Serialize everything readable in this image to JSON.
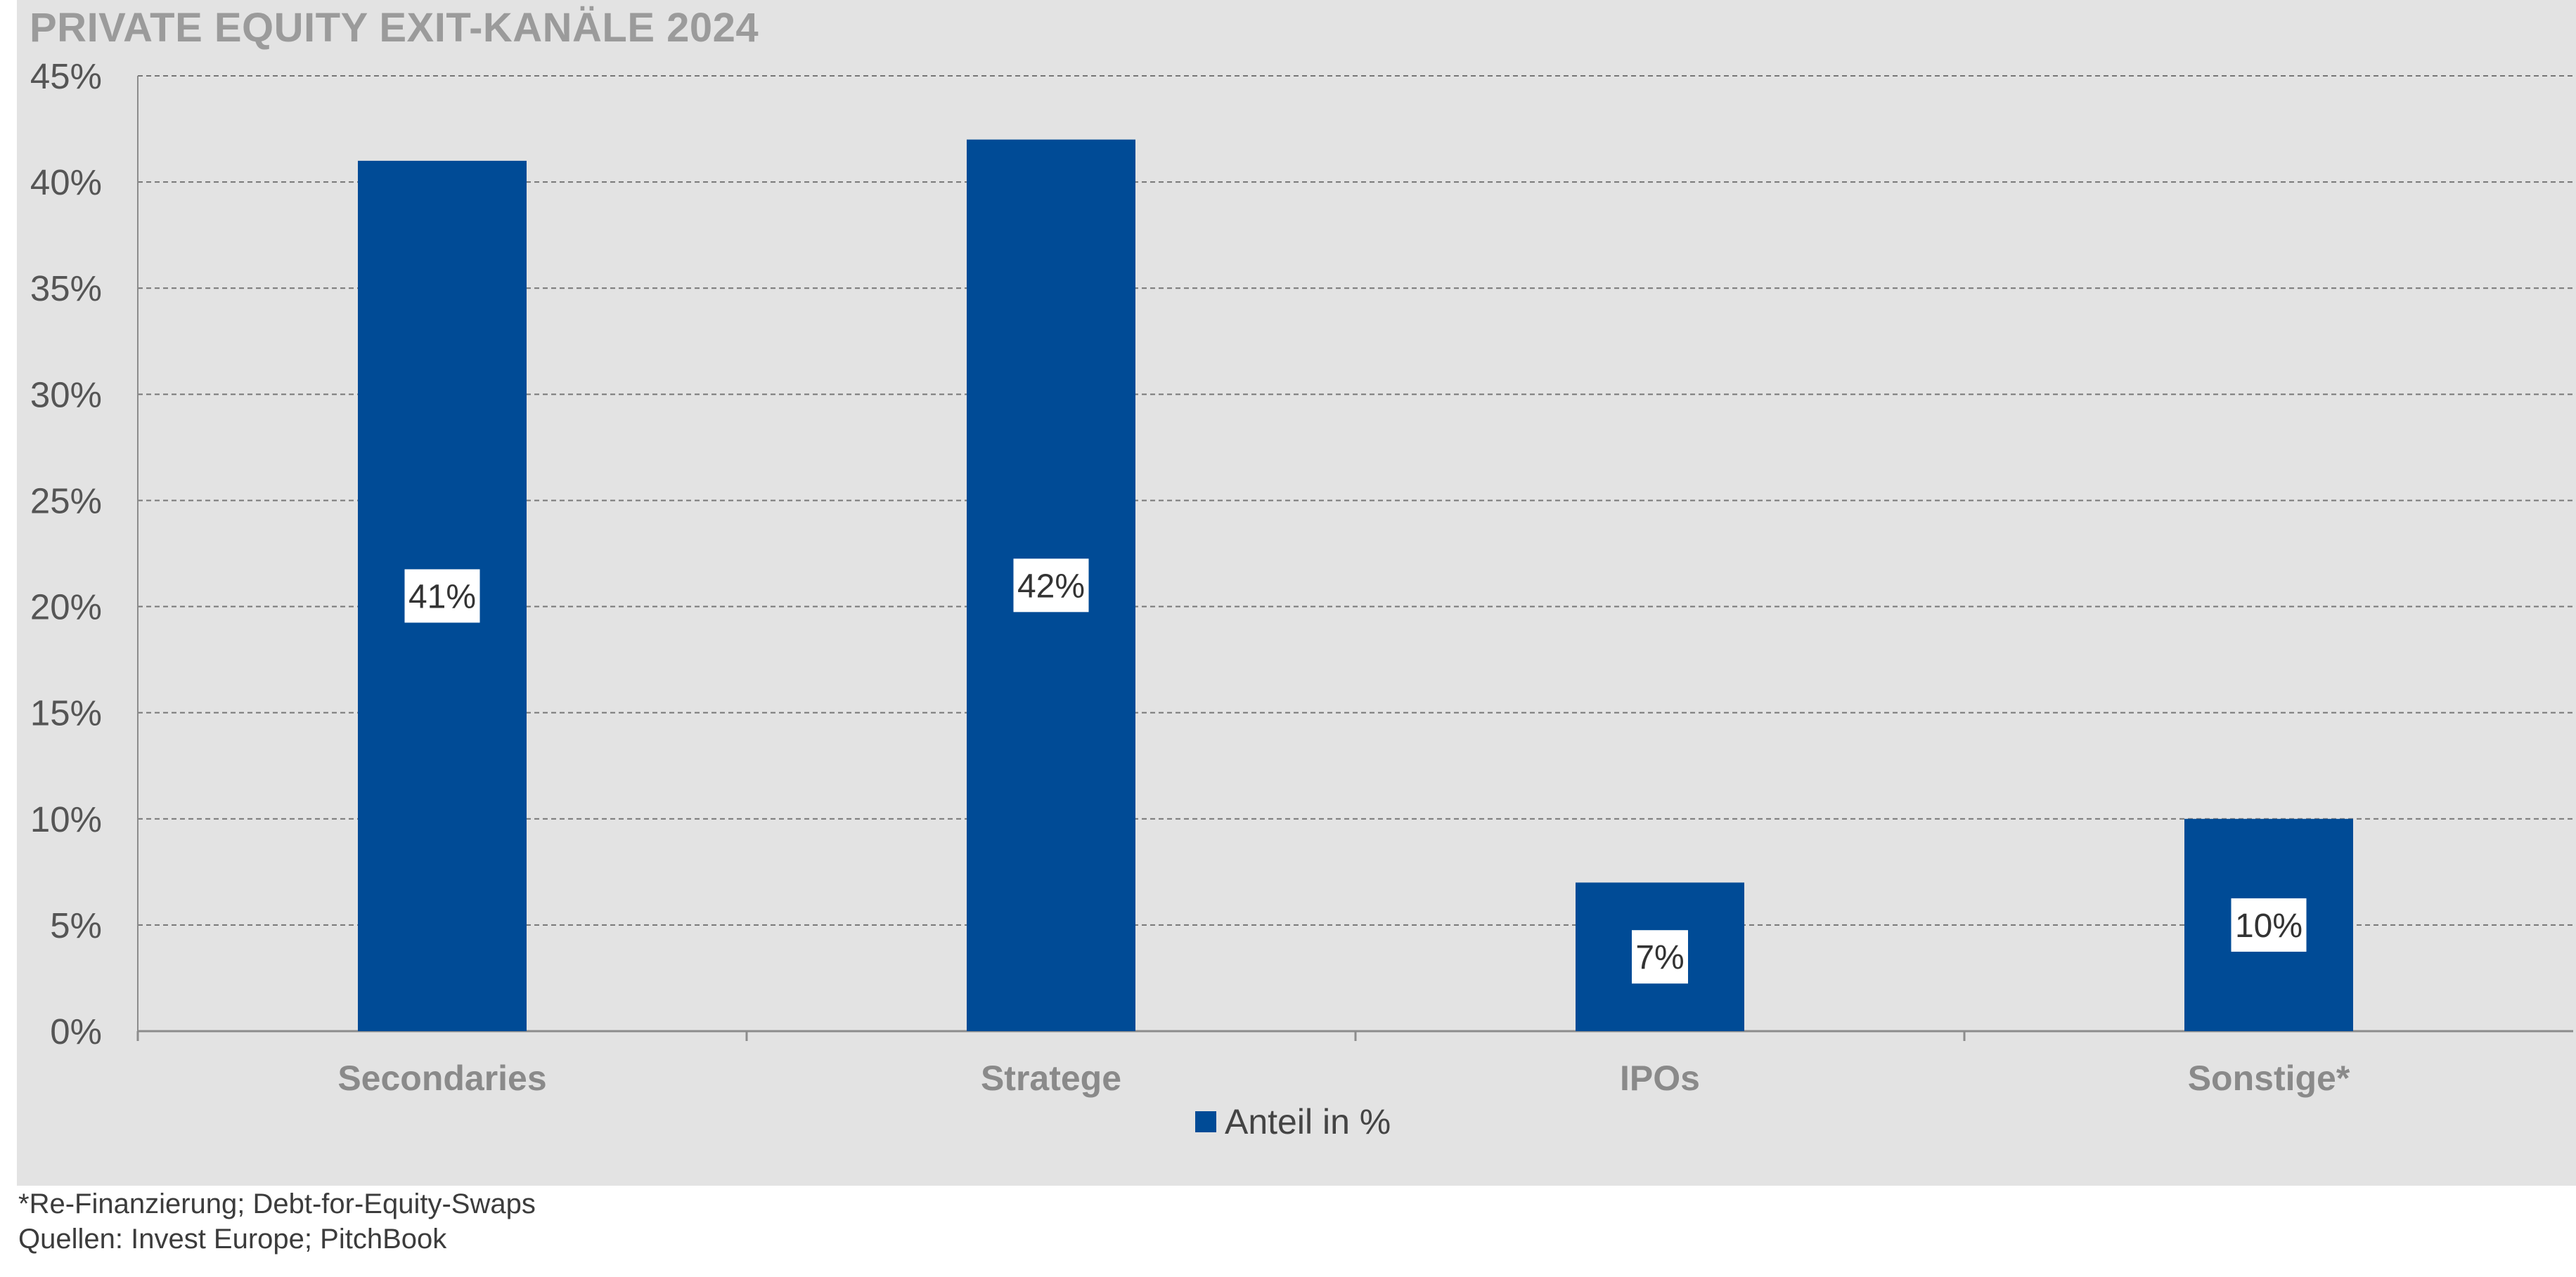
{
  "footnote": "*Re-Finanzierung; Debt-for-Equity-Swaps",
  "source": "Quellen: Invest Europe; PitchBook",
  "colors": {
    "bar": "#004b96",
    "panel": "#e3e3e3",
    "grid": "#777777",
    "title": "#9b9b9b"
  },
  "chart_data": {
    "type": "bar",
    "title": "PRIVATE EQUITY EXIT-KANÄLE 2024",
    "categories": [
      "Secondaries",
      "Stratege",
      "IPOs",
      "Sonstige*"
    ],
    "series": [
      {
        "name": "Anteil in %",
        "values": [
          41,
          42,
          7,
          10
        ]
      }
    ],
    "data_labels": [
      "41%",
      "42%",
      "7%",
      "10%"
    ],
    "ylim": [
      0,
      45
    ],
    "yticks": [
      0,
      5,
      10,
      15,
      20,
      25,
      30,
      35,
      40,
      45
    ],
    "ytick_labels": [
      "0%",
      "5%",
      "10%",
      "15%",
      "20%",
      "25%",
      "30%",
      "35%",
      "40%",
      "45%"
    ],
    "grid": "dashed horizontal",
    "legend_position": "bottom"
  }
}
